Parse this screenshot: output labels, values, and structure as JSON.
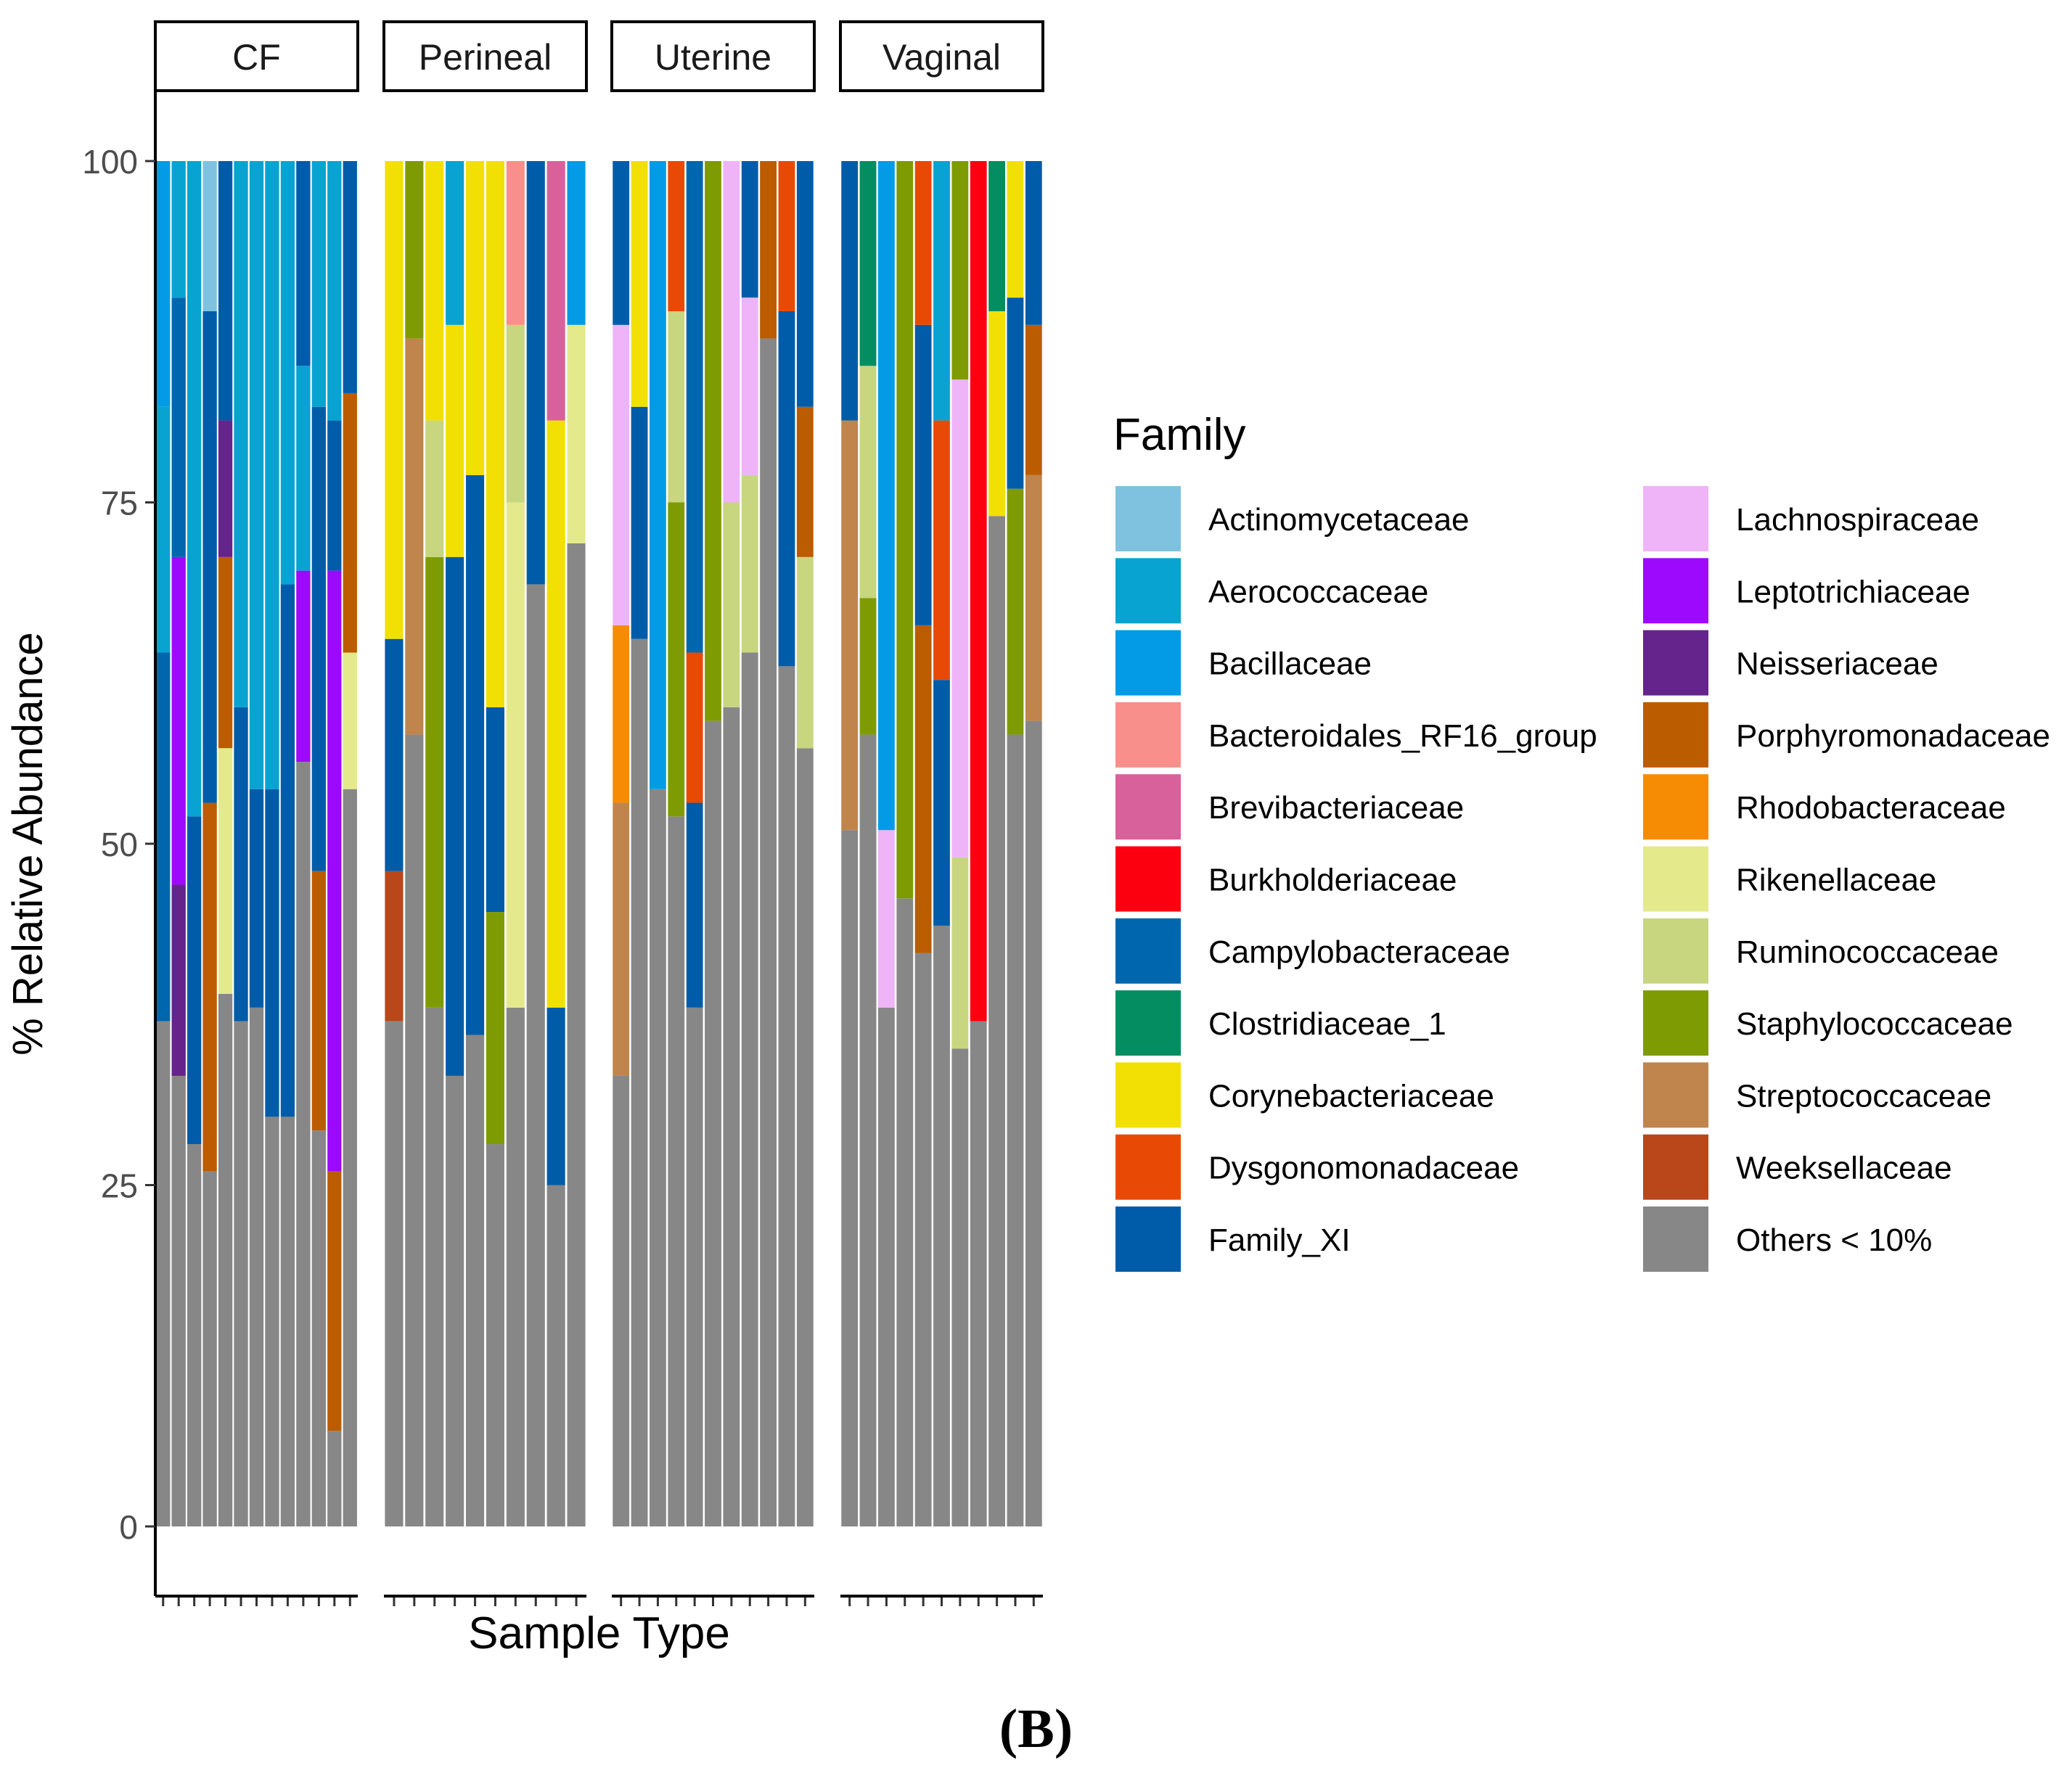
{
  "chart_data": {
    "type": "bar",
    "stacked": true,
    "facet_by": "Sample Type",
    "facets": [
      "CF",
      "Perineal",
      "Uterine",
      "Vaginal"
    ],
    "ylabel": "% Relative Abundance",
    "xlabel": "Sample Type",
    "ylim": [
      0,
      100
    ],
    "yticks": [
      0,
      25,
      50,
      75,
      100
    ],
    "legend": {
      "title": "Family",
      "position": "right"
    },
    "families": [
      {
        "name": "Actinomycetaceae",
        "color": "#7fc2df"
      },
      {
        "name": "Aerococcaceae",
        "color": "#09a3d1"
      },
      {
        "name": "Bacillaceae",
        "color": "#039be5"
      },
      {
        "name": "Bacteroidales_RF16_group",
        "color": "#f98f8a"
      },
      {
        "name": "Brevibacteriaceae",
        "color": "#d9619b"
      },
      {
        "name": "Burkholderiaceae",
        "color": "#fc0010"
      },
      {
        "name": "Campylobacteraceae",
        "color": "#0066ad"
      },
      {
        "name": "Clostridiaceae_1",
        "color": "#048d60"
      },
      {
        "name": "Corynebacteriaceae",
        "color": "#f2e004"
      },
      {
        "name": "Dysgonomonadaceae",
        "color": "#e84a06"
      },
      {
        "name": "Family_XI",
        "color": "#005ca9"
      },
      {
        "name": "Lachnospiraceae",
        "color": "#efb4f7"
      },
      {
        "name": "Leptotrichiaceae",
        "color": "#9d09fc"
      },
      {
        "name": "Neisseriaceae",
        "color": "#65238c"
      },
      {
        "name": "Porphyromonadaceae",
        "color": "#bc5c00"
      },
      {
        "name": "Rhodobacteraceae",
        "color": "#f68c03"
      },
      {
        "name": "Rikenellaceae",
        "color": "#e4ea8c"
      },
      {
        "name": "Ruminococcaceae",
        "color": "#c8d67f"
      },
      {
        "name": "Staphylococcaceae",
        "color": "#7f9b04"
      },
      {
        "name": "Streptococcaceae",
        "color": "#bf854c"
      },
      {
        "name": "Weeksellaceae",
        "color": "#b94719"
      },
      {
        "name": "Others < 10%",
        "color": "#878787"
      }
    ],
    "samples": {
      "CF": [
        [
          [
            "Others < 10%",
            37
          ],
          [
            "Campylobacteraceae",
            27
          ],
          [
            "Aerococcaceae",
            18
          ],
          [
            "Bacillaceae",
            18
          ]
        ],
        [
          [
            "Others < 10%",
            33
          ],
          [
            "Neisseriaceae",
            14
          ],
          [
            "Leptotrichiaceae",
            24
          ],
          [
            "Campylobacteraceae",
            19
          ],
          [
            "Aerococcaceae",
            10
          ]
        ],
        [
          [
            "Others < 10%",
            28
          ],
          [
            "Family_XI",
            24
          ],
          [
            "Aerococcaceae",
            48
          ]
        ],
        [
          [
            "Others < 10%",
            26
          ],
          [
            "Porphyromonadaceae",
            27
          ],
          [
            "Family_XI",
            36
          ],
          [
            "Actinomycetaceae",
            11
          ]
        ],
        [
          [
            "Others < 10%",
            39
          ],
          [
            "Rikenellaceae",
            18
          ],
          [
            "Porphyromonadaceae",
            14
          ],
          [
            "Neisseriaceae",
            10
          ],
          [
            "Family_XI",
            19
          ]
        ],
        [
          [
            "Others < 10%",
            37
          ],
          [
            "Family_XI",
            23
          ],
          [
            "Aerococcaceae",
            40
          ]
        ],
        [
          [
            "Others < 10%",
            38
          ],
          [
            "Family_XI",
            16
          ],
          [
            "Aerococcaceae",
            46
          ]
        ],
        [
          [
            "Others < 10%",
            30
          ],
          [
            "Family_XI",
            24
          ],
          [
            "Aerococcaceae",
            46
          ]
        ],
        [
          [
            "Others < 10%",
            30
          ],
          [
            "Family_XI",
            39
          ],
          [
            "Aerococcaceae",
            31
          ]
        ],
        [
          [
            "Others < 10%",
            56
          ],
          [
            "Leptotrichiaceae",
            14
          ],
          [
            "Aerococcaceae",
            15
          ],
          [
            "Family_XI",
            15
          ]
        ],
        [
          [
            "Others < 10%",
            29
          ],
          [
            "Porphyromonadaceae",
            19
          ],
          [
            "Family_XI",
            34
          ],
          [
            "Aerococcaceae",
            18
          ]
        ],
        [
          [
            "Others < 10%",
            7
          ],
          [
            "Porphyromonadaceae",
            19
          ],
          [
            "Leptotrichiaceae",
            44
          ],
          [
            "Family_XI",
            11
          ],
          [
            "Aerococcaceae",
            19
          ]
        ],
        [
          [
            "Others < 10%",
            54
          ],
          [
            "Rikenellaceae",
            10
          ],
          [
            "Porphyromonadaceae",
            19
          ],
          [
            "Family_XI",
            17
          ]
        ]
      ],
      "Perineal": [
        [
          [
            "Others < 10%",
            37
          ],
          [
            "Weeksellaceae",
            11
          ],
          [
            "Family_XI",
            17
          ],
          [
            "Corynebacteriaceae",
            35
          ]
        ],
        [
          [
            "Others < 10%",
            58
          ],
          [
            "Streptococcaceae",
            29
          ],
          [
            "Staphylococcaceae",
            13
          ]
        ],
        [
          [
            "Others < 10%",
            38
          ],
          [
            "Staphylococcaceae",
            33
          ],
          [
            "Ruminococcaceae",
            10
          ],
          [
            "Corynebacteriaceae",
            19
          ]
        ],
        [
          [
            "Others < 10%",
            33
          ],
          [
            "Family_XI",
            38
          ],
          [
            "Corynebacteriaceae",
            17
          ],
          [
            "Aerococcaceae",
            12
          ]
        ],
        [
          [
            "Others < 10%",
            36
          ],
          [
            "Family_XI",
            41
          ],
          [
            "Corynebacteriaceae",
            23
          ]
        ],
        [
          [
            "Others < 10%",
            28
          ],
          [
            "Staphylococcaceae",
            17
          ],
          [
            "Family_XI",
            15
          ],
          [
            "Corynebacteriaceae",
            40
          ]
        ],
        [
          [
            "Others < 10%",
            38
          ],
          [
            "Rikenellaceae",
            37
          ],
          [
            "Ruminococcaceae",
            13
          ],
          [
            "Bacteroidales_RF16_group",
            12
          ]
        ],
        [
          [
            "Others < 10%",
            69
          ],
          [
            "Family_XI",
            31
          ]
        ],
        [
          [
            "Others < 10%",
            25
          ],
          [
            "Family_XI",
            13
          ],
          [
            "Corynebacteriaceae",
            43
          ],
          [
            "Brevibacteriaceae",
            19
          ]
        ],
        [
          [
            "Others < 10%",
            72
          ],
          [
            "Rikenellaceae",
            16
          ],
          [
            "Bacillaceae",
            12
          ]
        ]
      ],
      "Uterine": [
        [
          [
            "Others < 10%",
            33
          ],
          [
            "Streptococcaceae",
            20
          ],
          [
            "Rhodobacteraceae",
            13
          ],
          [
            "Lachnospiraceae",
            22
          ],
          [
            "Family_XI",
            12
          ]
        ],
        [
          [
            "Others < 10%",
            65
          ],
          [
            "Family_XI",
            17
          ],
          [
            "Corynebacteriaceae",
            18
          ]
        ],
        [
          [
            "Others < 10%",
            54
          ],
          [
            "Bacillaceae",
            46
          ]
        ],
        [
          [
            "Others < 10%",
            52
          ],
          [
            "Staphylococcaceae",
            23
          ],
          [
            "Ruminococcaceae",
            14
          ],
          [
            "Dysgonomonadaceae",
            11
          ]
        ],
        [
          [
            "Others < 10%",
            38
          ],
          [
            "Family_XI",
            15
          ],
          [
            "Dysgonomonadaceae",
            11
          ],
          [
            "Campylobacteraceae",
            36
          ]
        ],
        [
          [
            "Others < 10%",
            59
          ],
          [
            "Staphylococcaceae",
            41
          ]
        ],
        [
          [
            "Others < 10%",
            60
          ],
          [
            "Ruminococcaceae",
            15
          ],
          [
            "Lachnospiraceae",
            25
          ]
        ],
        [
          [
            "Others < 10%",
            64
          ],
          [
            "Ruminococcaceae",
            13
          ],
          [
            "Lachnospiraceae",
            13
          ],
          [
            "Family_XI",
            10
          ]
        ],
        [
          [
            "Others < 10%",
            87
          ],
          [
            "Porphyromonadaceae",
            13
          ]
        ],
        [
          [
            "Others < 10%",
            63
          ],
          [
            "Family_XI",
            26
          ],
          [
            "Dysgonomonadaceae",
            11
          ]
        ],
        [
          [
            "Others < 10%",
            57
          ],
          [
            "Ruminococcaceae",
            14
          ],
          [
            "Porphyromonadaceae",
            11
          ],
          [
            "Family_XI",
            18
          ]
        ]
      ],
      "Vaginal": [
        [
          [
            "Others < 10%",
            51
          ],
          [
            "Streptococcaceae",
            30
          ],
          [
            "Family_XI",
            19
          ]
        ],
        [
          [
            "Others < 10%",
            58
          ],
          [
            "Staphylococcaceae",
            10
          ],
          [
            "Ruminococcaceae",
            17
          ],
          [
            "Clostridiaceae_1",
            15
          ]
        ],
        [
          [
            "Others < 10%",
            38
          ],
          [
            "Lachnospiraceae",
            13
          ],
          [
            "Bacillaceae",
            49
          ]
        ],
        [
          [
            "Others < 10%",
            46
          ],
          [
            "Staphylococcaceae",
            54
          ]
        ],
        [
          [
            "Others < 10%",
            42
          ],
          [
            "Porphyromonadaceae",
            24
          ],
          [
            "Family_XI",
            22
          ],
          [
            "Dysgonomonadaceae",
            12
          ]
        ],
        [
          [
            "Others < 10%",
            44
          ],
          [
            "Family_XI",
            18
          ],
          [
            "Dysgonomonadaceae",
            19
          ],
          [
            "Aerococcaceae",
            19
          ]
        ],
        [
          [
            "Others < 10%",
            35
          ],
          [
            "Ruminococcaceae",
            14
          ],
          [
            "Lachnospiraceae",
            35
          ],
          [
            "Staphylococcaceae",
            16
          ]
        ],
        [
          [
            "Others < 10%",
            37
          ],
          [
            "Burkholderiaceae",
            63
          ]
        ],
        [
          [
            "Others < 10%",
            74
          ],
          [
            "Corynebacteriaceae",
            15
          ],
          [
            "Clostridiaceae_1",
            11
          ]
        ],
        [
          [
            "Others < 10%",
            58
          ],
          [
            "Staphylococcaceae",
            18
          ],
          [
            "Family_XI",
            14
          ],
          [
            "Corynebacteriaceae",
            10
          ]
        ],
        [
          [
            "Others < 10%",
            59
          ],
          [
            "Streptococcaceae",
            18
          ],
          [
            "Porphyromonadaceae",
            11
          ],
          [
            "Family_XI",
            12
          ]
        ]
      ]
    }
  },
  "panel_label": "(B)"
}
